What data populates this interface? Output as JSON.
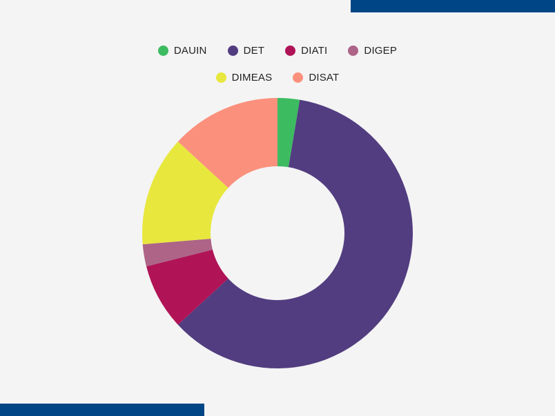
{
  "theme": {
    "background": "#f4f4f4",
    "accent_bar": "#004687"
  },
  "chart_data": {
    "type": "pie",
    "variant": "donut",
    "title": "",
    "categories": [
      "DAUIN",
      "DET",
      "DIATI",
      "DIGEP",
      "DIMEAS",
      "DISAT"
    ],
    "values": [
      1,
      23,
      3,
      1,
      5,
      5
    ],
    "percentages_approx": [
      2.6,
      60.5,
      7.9,
      2.6,
      13.2,
      13.2
    ],
    "colors": [
      "#3dbb61",
      "#523d80",
      "#b01457",
      "#ad6487",
      "#e7e73e",
      "#fb917d"
    ],
    "start_angle_deg": 0,
    "direction": "clockwise",
    "inner_radius_ratio": 0.495,
    "legend_position": "top",
    "data_labels": false
  },
  "legend": {
    "rows": [
      [
        {
          "label": "DAUIN",
          "color": "#3dbb61"
        },
        {
          "label": "DET",
          "color": "#523d80"
        },
        {
          "label": "DIATI",
          "color": "#b01457"
        },
        {
          "label": "DIGEP",
          "color": "#ad6487"
        }
      ],
      [
        {
          "label": "DIMEAS",
          "color": "#e7e73e"
        },
        {
          "label": "DISAT",
          "color": "#fb917d"
        }
      ]
    ]
  }
}
